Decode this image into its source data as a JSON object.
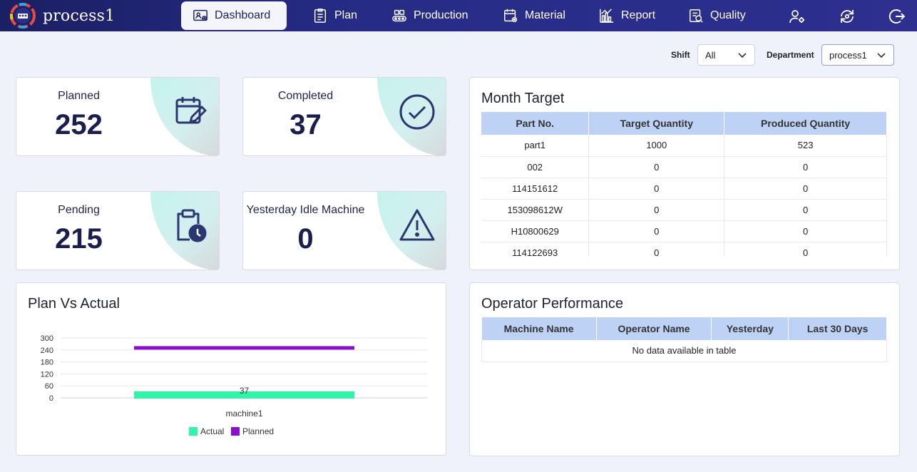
{
  "app": {
    "name": "process1"
  },
  "nav": {
    "items": [
      {
        "label": "Dashboard",
        "icon": "dashboard-icon"
      },
      {
        "label": "Plan",
        "icon": "clipboard-icon"
      },
      {
        "label": "Production",
        "icon": "conveyor-icon"
      },
      {
        "label": "Material",
        "icon": "calendar-gear-icon"
      },
      {
        "label": "Report",
        "icon": "bar-chart-icon"
      },
      {
        "label": "Quality",
        "icon": "quality-check-icon"
      }
    ],
    "right_icons": [
      "user-settings-icon",
      "refresh-icon",
      "logout-icon"
    ]
  },
  "filters": {
    "shift_label": "Shift",
    "shift_value": "All",
    "department_label": "Department",
    "department_value": "process1"
  },
  "stats": {
    "planned": {
      "label": "Planned",
      "value": "252"
    },
    "completed": {
      "label": "Completed",
      "value": "37"
    },
    "pending": {
      "label": "Pending",
      "value": "215"
    },
    "idle": {
      "label": "Yesterday Idle Machine",
      "value": "0"
    }
  },
  "month_target": {
    "title": "Month Target",
    "headers": [
      "Part No.",
      "Target Quantity",
      "Produced Quantity"
    ],
    "rows": [
      [
        "part1",
        "1000",
        "523"
      ],
      [
        "002",
        "0",
        "0"
      ],
      [
        "114151612",
        "0",
        "0"
      ],
      [
        "153098612W",
        "0",
        "0"
      ],
      [
        "H10800629",
        "0",
        "0"
      ],
      [
        "114122693",
        "0",
        "0"
      ]
    ]
  },
  "operator_performance": {
    "title": "Operator Performance",
    "headers": [
      "Machine Name",
      "Operator Name",
      "Yesterday",
      "Last 30 Days"
    ],
    "empty_text": "No data available in table"
  },
  "plan_vs_actual": {
    "title": "Plan Vs Actual"
  },
  "chart_data": {
    "type": "bar",
    "orientation": "horizontal",
    "categories": [
      "machine1"
    ],
    "series": [
      {
        "name": "Actual",
        "values": [
          37
        ],
        "color": "#2ef5a8"
      },
      {
        "name": "Planned",
        "values": [
          252
        ],
        "color": "#8a0fd0"
      }
    ],
    "data_labels": [
      "37"
    ],
    "y_ticks": [
      "300",
      "240",
      "180",
      "120",
      "60",
      "0"
    ],
    "xlabel": "",
    "ylabel": "",
    "legend": "bottom"
  },
  "colors": {
    "nav_bg": "#262c86",
    "accent": "#1e2366",
    "header_cell": "#bdd2f4"
  }
}
